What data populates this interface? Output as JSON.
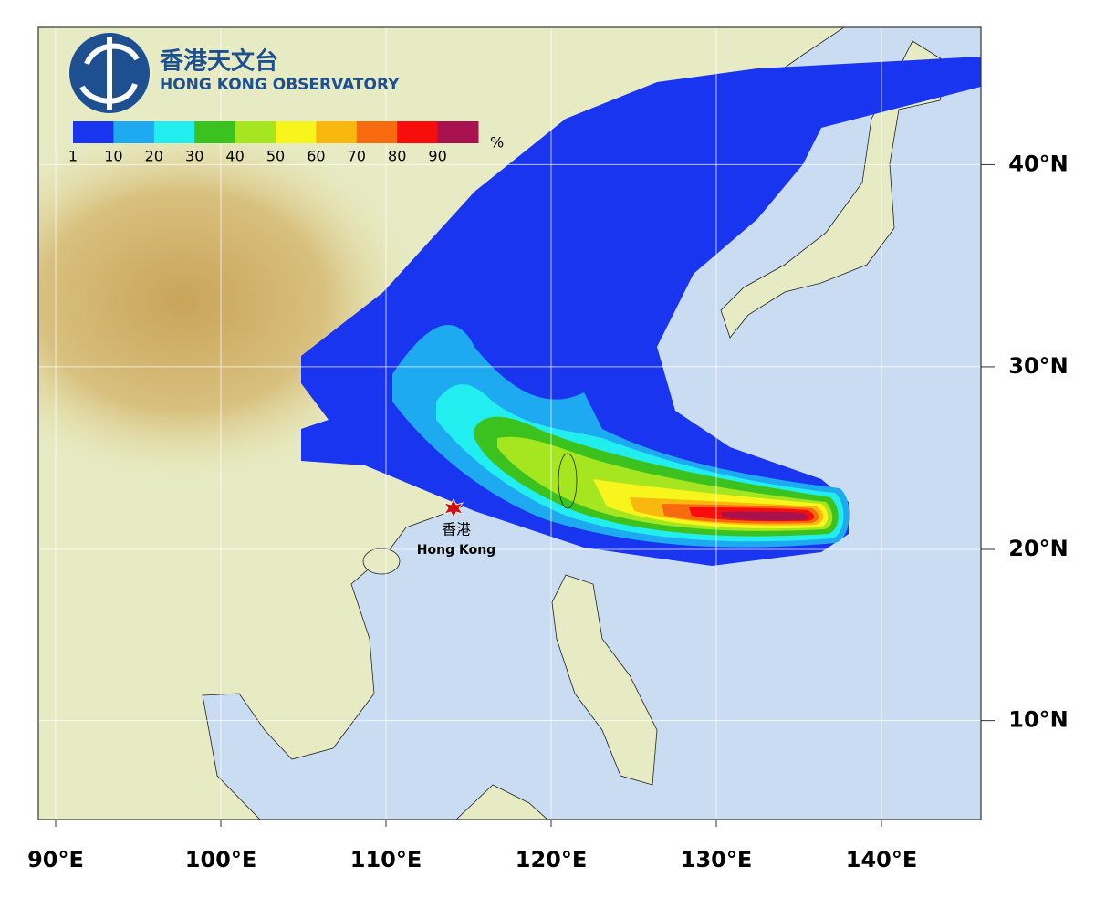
{
  "logo": {
    "chinese_name": "香港天文台",
    "english_name": "HONG KONG OBSERVATORY"
  },
  "colorbar": {
    "unit": "%",
    "ticks": [
      1,
      10,
      20,
      30,
      40,
      50,
      60,
      70,
      80,
      90
    ],
    "colors": [
      "#1a35f0",
      "#1eaaf0",
      "#22eef0",
      "#3cc21e",
      "#a6e620",
      "#f8f51c",
      "#f8b80e",
      "#f86a10",
      "#f80d0d",
      "#a8124e"
    ]
  },
  "map": {
    "lon_ticks": [
      {
        "value": 90,
        "label": "90°E"
      },
      {
        "value": 100,
        "label": "100°E"
      },
      {
        "value": 110,
        "label": "110°E"
      },
      {
        "value": 120,
        "label": "120°E"
      },
      {
        "value": 130,
        "label": "130°E"
      },
      {
        "value": 140,
        "label": "140°E"
      }
    ],
    "lat_ticks": [
      {
        "value": 10,
        "label": "10°N"
      },
      {
        "value": 20,
        "label": "20°N"
      },
      {
        "value": 30,
        "label": "30°N"
      },
      {
        "value": 40,
        "label": "40°N"
      }
    ],
    "location": {
      "name_zh": "香港",
      "name_en": "Hong Kong"
    }
  }
}
